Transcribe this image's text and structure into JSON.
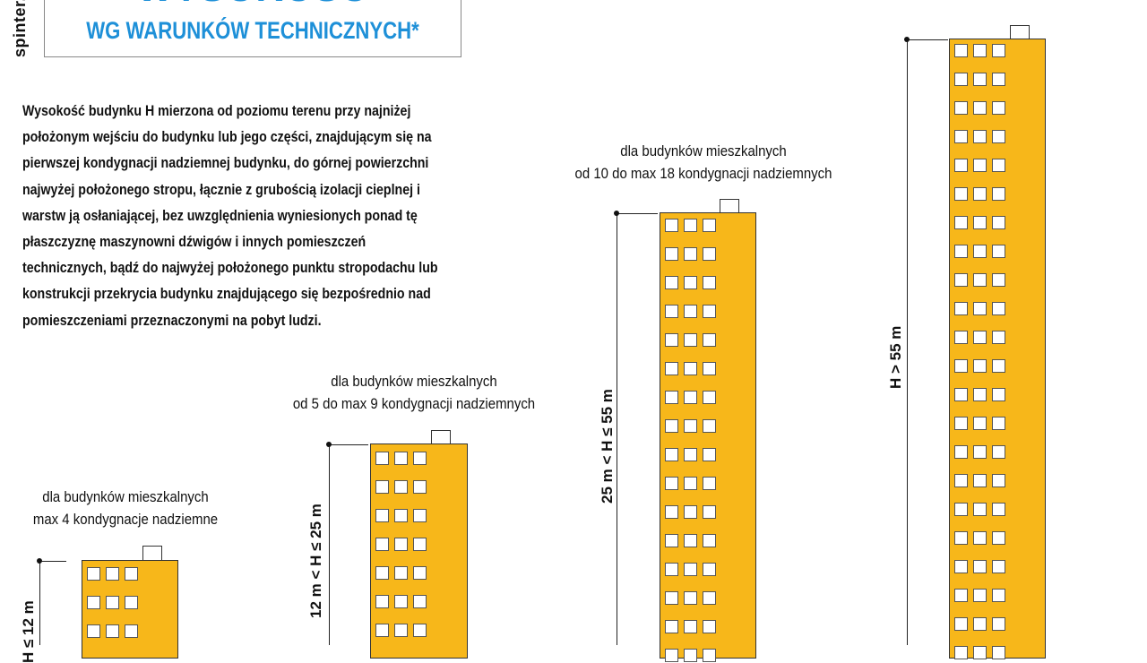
{
  "brand": "spinter.pl",
  "title_top": "WYSOKOŚĆ",
  "title_sub": "WG WARUNKÓW TECHNICZNYCH*",
  "definition_lines": [
    "Wysokość budynku H mierzona od poziomu terenu przy najniżej",
    "położonym wejściu do budynku lub jego części, znajdującym się na",
    "pierwszej kondygnacji nadziemnej budynku, do górnej powierzchni",
    "najwyżej położonego stropu, łącznie z grubością izolacji cieplnej i",
    "warstw ją osłaniającej, bez uwzględnienia wyniesionych ponad tę",
    "płaszczyznę maszynowni dźwigów i innych pomieszczeń",
    "technicznych, bądź do najwyżej położonego punktu stropodachu lub",
    "konstrukcji przekrycia budynku znajdującego się bezpośrednio nad",
    "pomieszczeniami przeznaczonymi na pobyt ludzi."
  ],
  "buildings": [
    {
      "id": "niski",
      "caption_line1": "dla budynków mieszkalnych",
      "caption_line2": "max 4 kondygnacje nadziemne",
      "height_label": "H ≤ 12 m"
    },
    {
      "id": "sredniowysoki",
      "caption_line1": "dla budynków mieszkalnych",
      "caption_line2": "od 5 do max 9 kondygnacji nadziemnych",
      "height_label": "12 m < H ≤ 25 m"
    },
    {
      "id": "wysoki",
      "caption_line1": "dla budynków mieszkalnych",
      "caption_line2": "od 10 do max 18 kondygnacji nadziemnych",
      "height_label": "25 m < H ≤ 55 m"
    },
    {
      "id": "wysokosciowy",
      "caption_line1": "",
      "caption_line2": "",
      "height_label": "H > 55 m"
    }
  ],
  "colors": {
    "building_fill": "#f7b71a",
    "title_blue": "#1e90d8",
    "outline": "#333333"
  }
}
